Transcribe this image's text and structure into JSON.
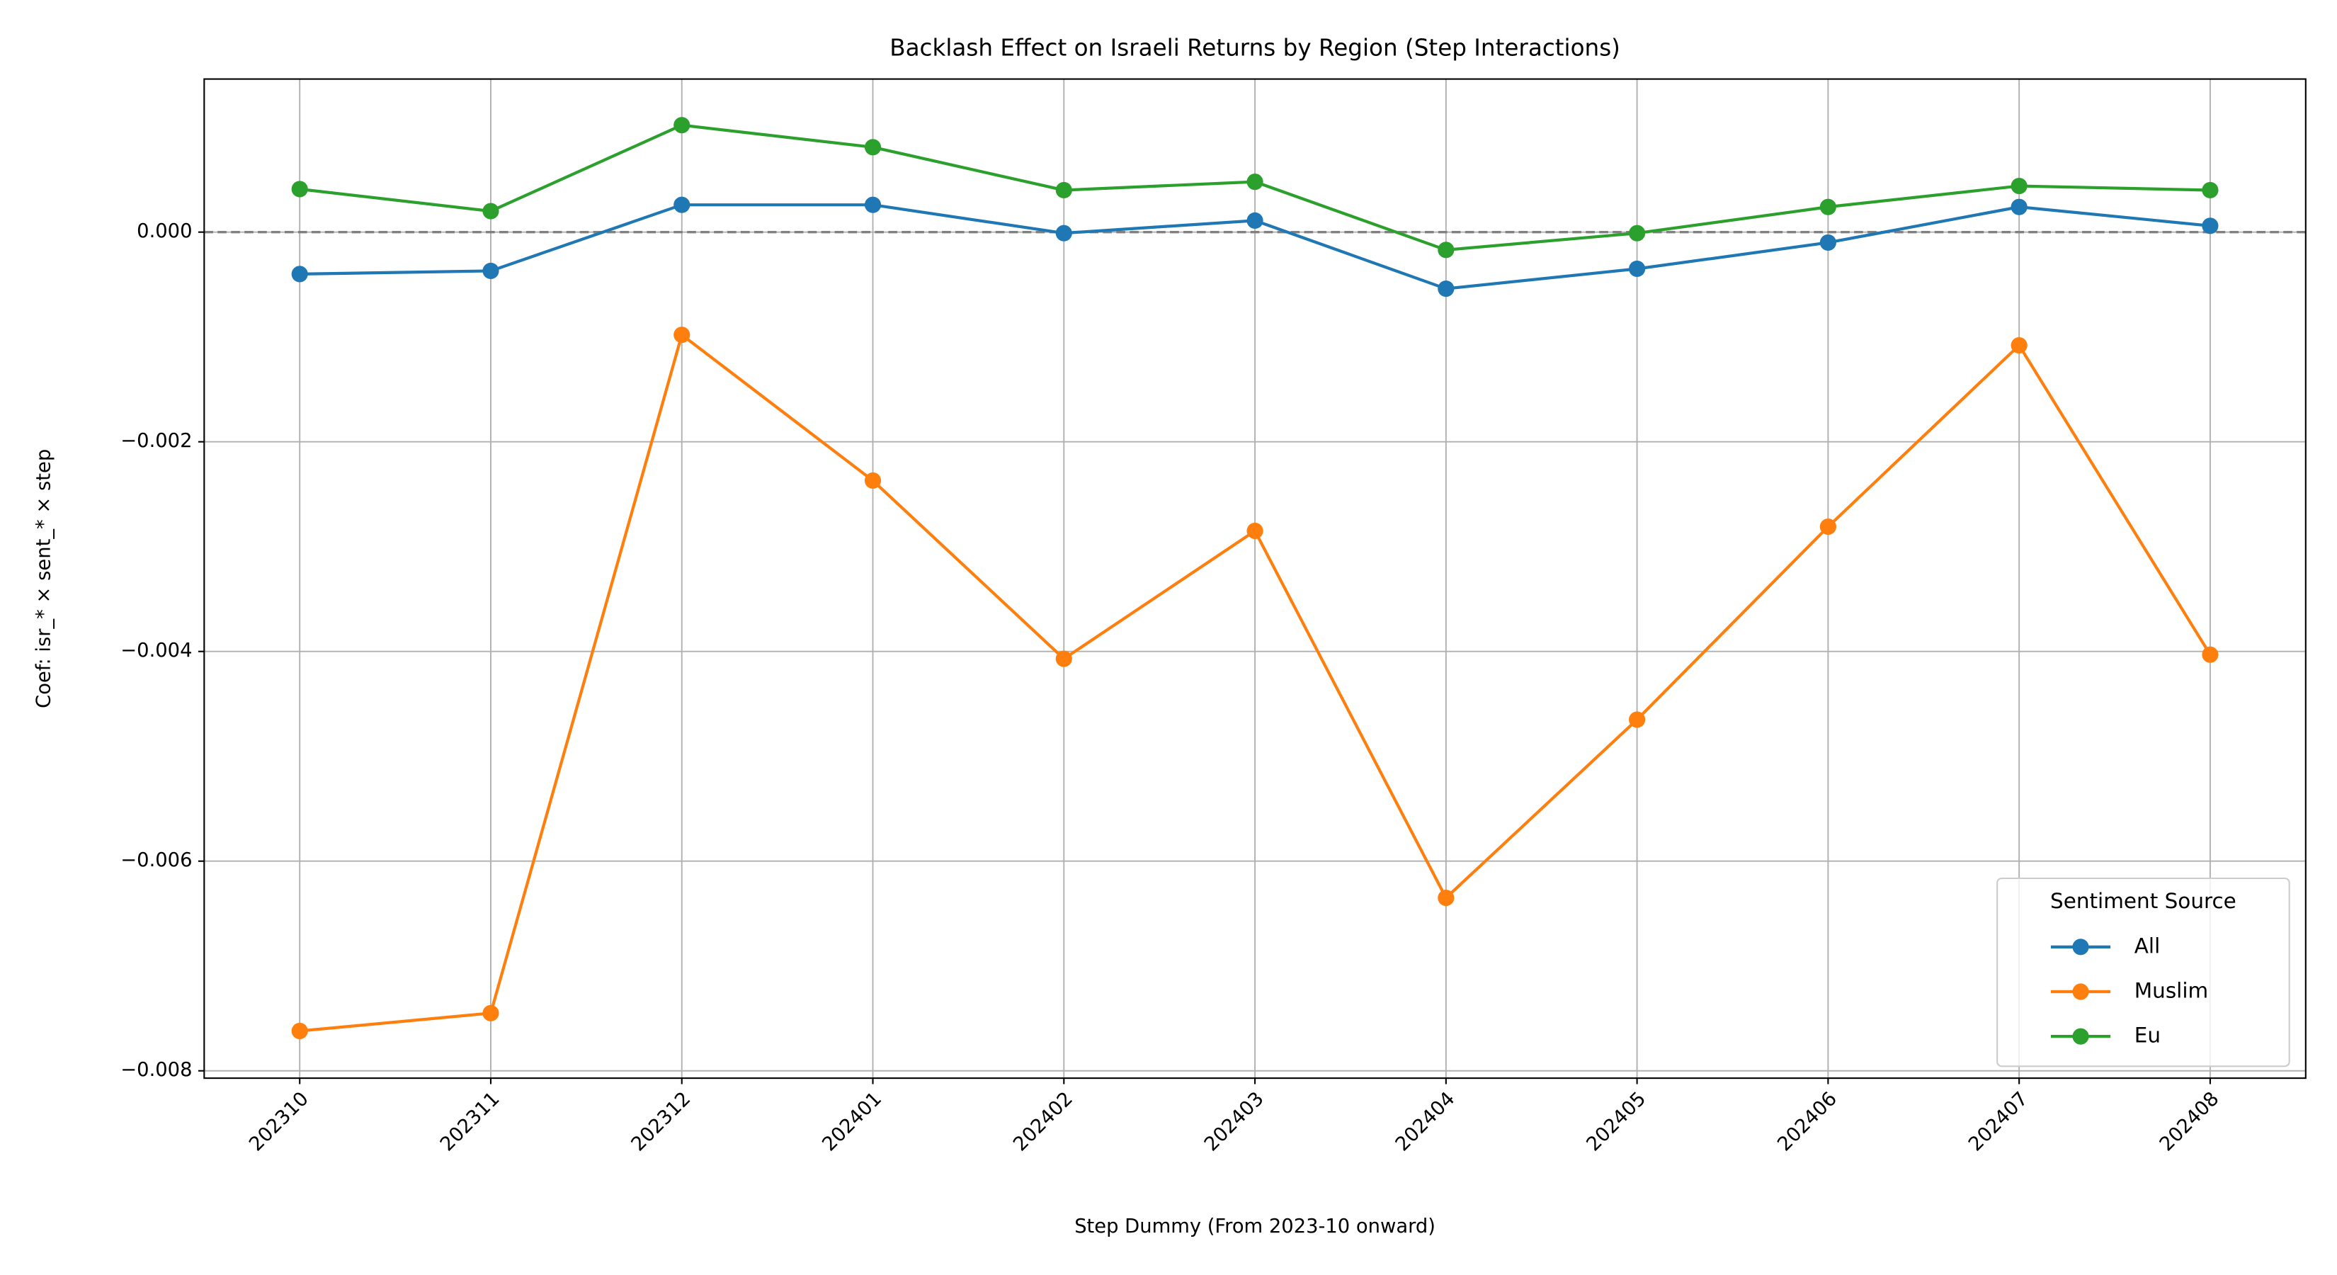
{
  "chart_data": {
    "type": "line",
    "title": "Backlash Effect on Israeli Returns by Region (Step Interactions)",
    "x_label": "Step Dummy (From 2023-10 onward)",
    "y_label": "Coef: isr_* × sent_* × step",
    "categories": [
      "202310",
      "202311",
      "202312",
      "202401",
      "202402",
      "202403",
      "202404",
      "202405",
      "202406",
      "202407",
      "202408"
    ],
    "series": [
      {
        "name": "All",
        "color": "#1f77b4",
        "values": [
          -0.0004,
          -0.00037,
          0.00026,
          0.00026,
          -1e-05,
          0.00011,
          -0.00054,
          -0.00035,
          -0.0001,
          0.00024,
          6e-05
        ]
      },
      {
        "name": "Muslim",
        "color": "#ff7f0e",
        "values": [
          -0.00762,
          -0.00745,
          -0.00098,
          -0.00237,
          -0.00407,
          -0.00285,
          -0.00635,
          -0.00465,
          -0.00281,
          -0.00108,
          -0.00403
        ]
      },
      {
        "name": "Eu",
        "color": "#2ca02c",
        "values": [
          0.00041,
          0.0002,
          0.00102,
          0.00081,
          0.0004,
          0.00048,
          -0.00017,
          -1e-05,
          0.00024,
          0.00044,
          0.0004
        ]
      }
    ],
    "ylim": [
      -0.00807,
      0.00146
    ],
    "yticks": [
      {
        "value": 0,
        "label": "0.000"
      },
      {
        "value": -0.002,
        "label": "−0.002"
      },
      {
        "value": -0.004,
        "label": "−0.004"
      },
      {
        "value": -0.006,
        "label": "−0.006"
      },
      {
        "value": -0.008,
        "label": "−0.008"
      }
    ],
    "reference_line": 0,
    "grid": true,
    "legend_title": "Sentiment Source",
    "legend_position": "lower right"
  }
}
